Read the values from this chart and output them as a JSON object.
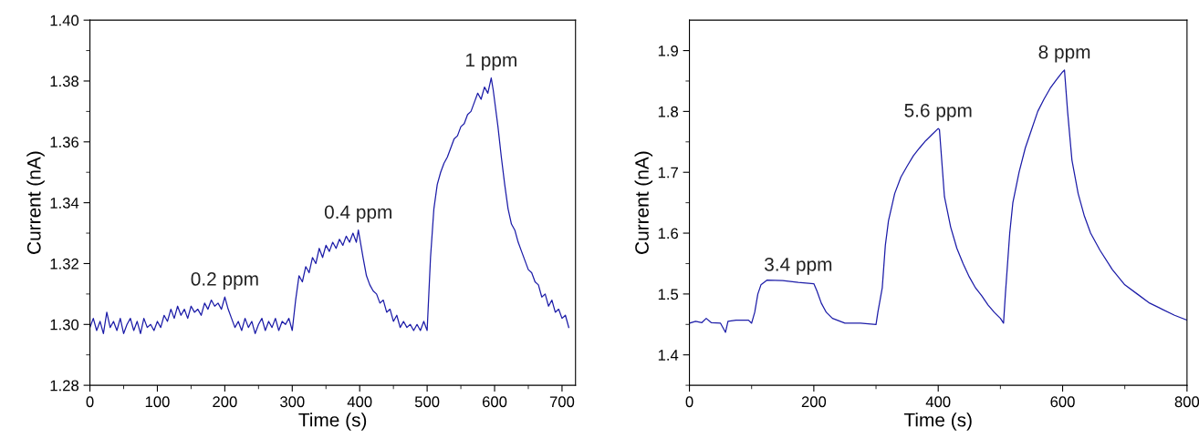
{
  "chart_data": [
    {
      "type": "line",
      "xlabel": "Time (s)",
      "ylabel": "Current (nA)",
      "xlim": [
        0,
        720
      ],
      "ylim": [
        1.28,
        1.4
      ],
      "xticks": [
        0,
        {
          "value": 50,
          "label": null
        },
        100,
        {
          "value": 150,
          "label": null
        },
        200,
        {
          "value": 250,
          "label": null
        },
        300,
        {
          "value": 350,
          "label": null
        },
        400,
        {
          "value": 450,
          "label": null
        },
        500,
        {
          "value": 550,
          "label": null
        },
        600,
        {
          "value": 650,
          "label": null
        },
        700
      ],
      "yticks": [
        {
          "value": 1.28,
          "label": "1.28"
        },
        {
          "value": 1.29,
          "label": null
        },
        {
          "value": 1.3,
          "label": "1.30"
        },
        {
          "value": 1.31,
          "label": null
        },
        {
          "value": 1.32,
          "label": "1.32"
        },
        {
          "value": 1.33,
          "label": null
        },
        {
          "value": 1.34,
          "label": "1.34"
        },
        {
          "value": 1.35,
          "label": null
        },
        {
          "value": 1.36,
          "label": "1.36"
        },
        {
          "value": 1.37,
          "label": null
        },
        {
          "value": 1.38,
          "label": "1.38"
        },
        {
          "value": 1.39,
          "label": null
        },
        {
          "value": 1.4,
          "label": "1.40"
        }
      ],
      "grid": false,
      "legend": false,
      "marker": "none",
      "line_style": "solid",
      "annotations": [
        {
          "text": "0.2 ppm",
          "x": 200,
          "y": 1.309
        },
        {
          "text": "0.4 ppm",
          "x": 398,
          "y": 1.331
        },
        {
          "text": "1 ppm",
          "x": 595,
          "y": 1.381
        }
      ],
      "series": [
        {
          "color": "#1c1ca8",
          "x": [
            0,
            5,
            10,
            15,
            20,
            25,
            30,
            35,
            40,
            45,
            50,
            55,
            60,
            65,
            70,
            75,
            80,
            85,
            90,
            95,
            100,
            105,
            110,
            115,
            120,
            125,
            130,
            135,
            140,
            145,
            150,
            155,
            160,
            165,
            170,
            175,
            180,
            185,
            190,
            195,
            200,
            205,
            210,
            215,
            220,
            225,
            230,
            235,
            240,
            245,
            250,
            255,
            260,
            265,
            270,
            275,
            280,
            285,
            290,
            295,
            300,
            305,
            310,
            315,
            320,
            325,
            330,
            335,
            340,
            345,
            350,
            355,
            360,
            365,
            370,
            375,
            380,
            385,
            390,
            395,
            398,
            405,
            410,
            415,
            420,
            425,
            430,
            435,
            440,
            445,
            450,
            455,
            460,
            465,
            470,
            475,
            480,
            485,
            490,
            495,
            500,
            505,
            510,
            515,
            520,
            525,
            530,
            535,
            540,
            545,
            550,
            555,
            560,
            565,
            570,
            575,
            580,
            585,
            590,
            595,
            598,
            605,
            610,
            615,
            620,
            625,
            630,
            635,
            640,
            645,
            650,
            655,
            660,
            665,
            670,
            675,
            680,
            685,
            690,
            695,
            700,
            705,
            710
          ],
          "values": [
            1.299,
            1.302,
            1.298,
            1.301,
            1.297,
            1.304,
            1.299,
            1.301,
            1.298,
            1.302,
            1.297,
            1.3,
            1.302,
            1.298,
            1.301,
            1.297,
            1.302,
            1.299,
            1.3,
            1.298,
            1.301,
            1.299,
            1.303,
            1.301,
            1.305,
            1.302,
            1.306,
            1.303,
            1.305,
            1.302,
            1.306,
            1.304,
            1.305,
            1.303,
            1.307,
            1.305,
            1.308,
            1.306,
            1.307,
            1.305,
            1.309,
            1.305,
            1.302,
            1.299,
            1.301,
            1.298,
            1.302,
            1.299,
            1.301,
            1.297,
            1.3,
            1.302,
            1.298,
            1.301,
            1.299,
            1.302,
            1.298,
            1.301,
            1.3,
            1.302,
            1.298,
            1.308,
            1.316,
            1.314,
            1.319,
            1.317,
            1.322,
            1.32,
            1.325,
            1.322,
            1.326,
            1.324,
            1.327,
            1.325,
            1.328,
            1.326,
            1.329,
            1.327,
            1.33,
            1.327,
            1.331,
            1.322,
            1.316,
            1.313,
            1.311,
            1.31,
            1.307,
            1.308,
            1.304,
            1.305,
            1.301,
            1.303,
            1.299,
            1.301,
            1.299,
            1.3,
            1.298,
            1.3,
            1.298,
            1.301,
            1.298,
            1.322,
            1.338,
            1.346,
            1.35,
            1.353,
            1.355,
            1.358,
            1.361,
            1.362,
            1.365,
            1.366,
            1.369,
            1.37,
            1.373,
            1.376,
            1.374,
            1.378,
            1.376,
            1.381,
            1.377,
            1.365,
            1.355,
            1.346,
            1.338,
            1.333,
            1.331,
            1.327,
            1.324,
            1.321,
            1.318,
            1.317,
            1.314,
            1.313,
            1.309,
            1.31,
            1.306,
            1.308,
            1.304,
            1.305,
            1.302,
            1.303,
            1.299
          ]
        }
      ]
    },
    {
      "type": "line",
      "xlabel": "Time (s)",
      "ylabel": "Current (nA)",
      "xlim": [
        0,
        800
      ],
      "ylim": [
        1.35,
        1.95
      ],
      "xticks": [
        0,
        {
          "value": 100,
          "label": null
        },
        200,
        {
          "value": 300,
          "label": null
        },
        400,
        {
          "value": 500,
          "label": null
        },
        600,
        {
          "value": 700,
          "label": null
        },
        800
      ],
      "yticks": [
        {
          "value": 1.35,
          "label": null
        },
        {
          "value": 1.4,
          "label": "1.4"
        },
        {
          "value": 1.45,
          "label": null
        },
        {
          "value": 1.5,
          "label": "1.5"
        },
        {
          "value": 1.55,
          "label": null
        },
        {
          "value": 1.6,
          "label": "1.6"
        },
        {
          "value": 1.65,
          "label": null
        },
        {
          "value": 1.7,
          "label": "1.7"
        },
        {
          "value": 1.75,
          "label": null
        },
        {
          "value": 1.8,
          "label": "1.8"
        },
        {
          "value": 1.85,
          "label": null
        },
        {
          "value": 1.9,
          "label": "1.9"
        }
      ],
      "grid": false,
      "legend": false,
      "marker": "none",
      "line_style": "solid",
      "annotations": [
        {
          "text": "3.4 ppm",
          "x": 175,
          "y": 1.519
        },
        {
          "text": "5.6 ppm",
          "x": 400,
          "y": 1.772
        },
        {
          "text": "8 ppm",
          "x": 603,
          "y": 1.868
        }
      ],
      "series": [
        {
          "color": "#1c1ca8",
          "x": [
            0,
            10,
            20,
            27,
            35,
            50,
            58,
            62,
            75,
            95,
            100,
            105,
            110,
            115,
            125,
            150,
            175,
            200,
            205,
            212,
            220,
            230,
            250,
            275,
            300,
            303,
            310,
            315,
            320,
            330,
            340,
            350,
            360,
            370,
            380,
            390,
            400,
            402,
            410,
            420,
            430,
            440,
            450,
            460,
            470,
            480,
            490,
            500,
            505,
            508,
            515,
            520,
            530,
            540,
            550,
            560,
            570,
            580,
            590,
            600,
            603,
            608,
            615,
            625,
            635,
            645,
            660,
            680,
            700,
            720,
            740,
            760,
            780,
            800
          ],
          "values": [
            1.452,
            1.455,
            1.453,
            1.46,
            1.453,
            1.452,
            1.437,
            1.455,
            1.457,
            1.457,
            1.452,
            1.47,
            1.5,
            1.515,
            1.523,
            1.522,
            1.519,
            1.517,
            1.505,
            1.485,
            1.47,
            1.46,
            1.452,
            1.452,
            1.45,
            1.47,
            1.51,
            1.58,
            1.62,
            1.665,
            1.692,
            1.71,
            1.727,
            1.74,
            1.752,
            1.762,
            1.772,
            1.77,
            1.66,
            1.61,
            1.575,
            1.55,
            1.528,
            1.51,
            1.497,
            1.482,
            1.47,
            1.46,
            1.452,
            1.5,
            1.6,
            1.65,
            1.7,
            1.74,
            1.77,
            1.8,
            1.82,
            1.838,
            1.852,
            1.865,
            1.868,
            1.8,
            1.72,
            1.665,
            1.628,
            1.6,
            1.572,
            1.54,
            1.515,
            1.5,
            1.485,
            1.475,
            1.465,
            1.457
          ]
        }
      ]
    }
  ]
}
